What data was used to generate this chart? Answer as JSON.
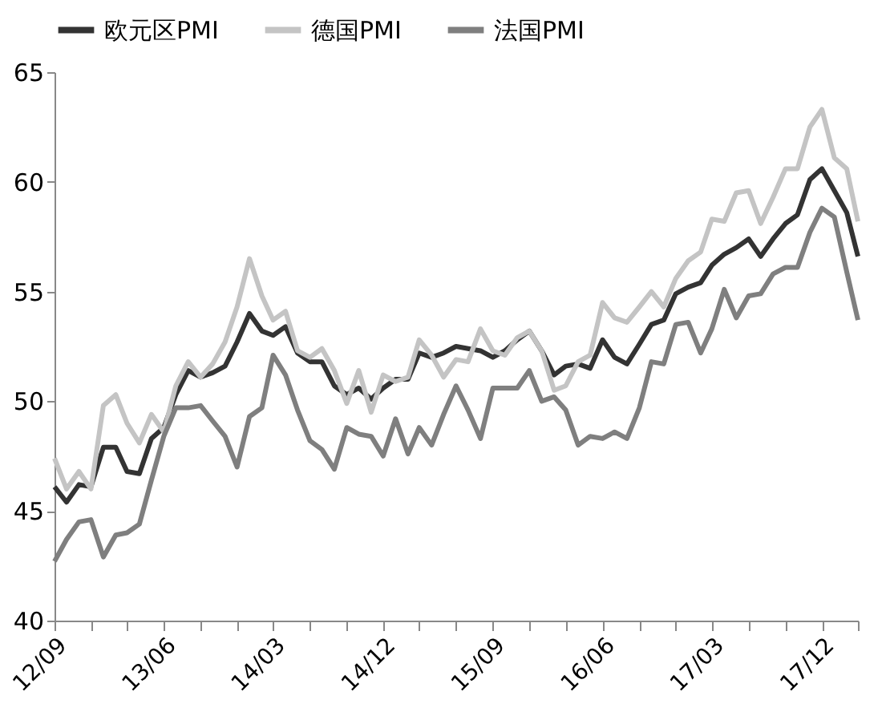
{
  "chart_data": {
    "type": "line",
    "legend": "top",
    "grid": false,
    "marker": "none",
    "line_style": "solid",
    "x": [
      "2012-09",
      "2012-10",
      "2012-11",
      "2012-12",
      "2013-01",
      "2013-02",
      "2013-03",
      "2013-04",
      "2013-05",
      "2013-06",
      "2013-07",
      "2013-08",
      "2013-09",
      "2013-10",
      "2013-11",
      "2013-12",
      "2014-01",
      "2014-02",
      "2014-03",
      "2014-04",
      "2014-05",
      "2014-06",
      "2014-07",
      "2014-08",
      "2014-09",
      "2014-10",
      "2014-11",
      "2014-12",
      "2015-01",
      "2015-02",
      "2015-03",
      "2015-04",
      "2015-05",
      "2015-06",
      "2015-07",
      "2015-08",
      "2015-09",
      "2015-10",
      "2015-11",
      "2015-12",
      "2016-01",
      "2016-02",
      "2016-03",
      "2016-04",
      "2016-05",
      "2016-06",
      "2016-07",
      "2016-08",
      "2016-09",
      "2016-10",
      "2016-11",
      "2016-12",
      "2017-01",
      "2017-02",
      "2017-03",
      "2017-04",
      "2017-05",
      "2017-06",
      "2017-07",
      "2017-08",
      "2017-09",
      "2017-10",
      "2017-11",
      "2017-12",
      "2018-01",
      "2018-02",
      "2018-03"
    ],
    "series": [
      {
        "name": "欧元区PMI",
        "color": "#333333",
        "values": [
          46.1,
          45.4,
          46.2,
          46.1,
          47.9,
          47.9,
          46.8,
          46.7,
          48.3,
          48.8,
          50.3,
          51.4,
          51.1,
          51.3,
          51.6,
          52.7,
          54.0,
          53.2,
          53.0,
          53.4,
          52.2,
          51.8,
          51.8,
          50.7,
          50.3,
          50.6,
          50.1,
          50.6,
          51.0,
          51.0,
          52.2,
          52.0,
          52.2,
          52.5,
          52.4,
          52.3,
          52.0,
          52.3,
          52.8,
          53.2,
          52.3,
          51.2,
          51.6,
          51.7,
          51.5,
          52.8,
          52.0,
          51.7,
          52.6,
          53.5,
          53.7,
          54.9,
          55.2,
          55.4,
          56.2,
          56.7,
          57.0,
          57.4,
          56.6,
          57.4,
          58.1,
          58.5,
          60.1,
          60.6,
          59.6,
          58.6,
          56.6
        ]
      },
      {
        "name": "德国PMI",
        "color": "#c4c4c4",
        "values": [
          47.4,
          46.0,
          46.8,
          46.0,
          49.8,
          50.3,
          49.0,
          48.1,
          49.4,
          48.6,
          50.7,
          51.8,
          51.1,
          51.7,
          52.7,
          54.3,
          56.5,
          54.8,
          53.7,
          54.1,
          52.3,
          52.0,
          52.4,
          51.4,
          49.9,
          51.4,
          49.5,
          51.2,
          50.9,
          51.1,
          52.8,
          52.1,
          51.1,
          51.9,
          51.8,
          53.3,
          52.3,
          52.1,
          52.9,
          53.2,
          52.3,
          50.5,
          50.7,
          51.8,
          52.1,
          54.5,
          53.8,
          53.6,
          54.3,
          55.0,
          54.3,
          55.6,
          56.4,
          56.8,
          58.3,
          58.2,
          59.5,
          59.6,
          58.1,
          59.3,
          60.6,
          60.6,
          62.5,
          63.3,
          61.1,
          60.6,
          58.2
        ]
      },
      {
        "name": "法国PMI",
        "color": "#7f7f7f",
        "values": [
          42.7,
          43.7,
          44.5,
          44.6,
          42.9,
          43.9,
          44.0,
          44.4,
          46.4,
          48.4,
          49.7,
          49.7,
          49.8,
          49.1,
          48.4,
          47.0,
          49.3,
          49.7,
          52.1,
          51.2,
          49.6,
          48.2,
          47.8,
          46.9,
          48.8,
          48.5,
          48.4,
          47.5,
          49.2,
          47.6,
          48.8,
          48.0,
          49.4,
          50.7,
          49.6,
          48.3,
          50.6,
          50.6,
          50.6,
          51.4,
          50.0,
          50.2,
          49.6,
          48.0,
          48.4,
          48.3,
          48.6,
          48.3,
          49.7,
          51.8,
          51.7,
          53.5,
          53.6,
          52.2,
          53.3,
          55.1,
          53.8,
          54.8,
          54.9,
          55.8,
          56.1,
          56.1,
          57.7,
          58.8,
          58.4,
          55.9,
          53.7
        ]
      }
    ],
    "ylim": [
      40,
      65
    ],
    "yticks": [
      40,
      45,
      50,
      55,
      60,
      65
    ],
    "xlim": [
      "2012-09",
      "2018-03"
    ],
    "xticks": [
      {
        "value": "2012-09",
        "label": "12/09"
      },
      {
        "value": "2012-12",
        "label": null
      },
      {
        "value": "2013-03",
        "label": null
      },
      {
        "value": "2013-06",
        "label": "13/06"
      },
      {
        "value": "2013-09",
        "label": null
      },
      {
        "value": "2013-12",
        "label": null
      },
      {
        "value": "2014-03",
        "label": "14/03"
      },
      {
        "value": "2014-06",
        "label": null
      },
      {
        "value": "2014-09",
        "label": null
      },
      {
        "value": "2014-12",
        "label": "14/12"
      },
      {
        "value": "2015-03",
        "label": null
      },
      {
        "value": "2015-06",
        "label": null
      },
      {
        "value": "2015-09",
        "label": "15/09"
      },
      {
        "value": "2015-12",
        "label": null
      },
      {
        "value": "2016-03",
        "label": null
      },
      {
        "value": "2016-06",
        "label": "16/06"
      },
      {
        "value": "2016-09",
        "label": null
      },
      {
        "value": "2016-12",
        "label": null
      },
      {
        "value": "2017-03",
        "label": "17/03"
      },
      {
        "value": "2017-06",
        "label": null
      },
      {
        "value": "2017-09",
        "label": null
      },
      {
        "value": "2017-12",
        "label": "17/12"
      },
      {
        "value": "2018-03",
        "label": null
      }
    ]
  }
}
